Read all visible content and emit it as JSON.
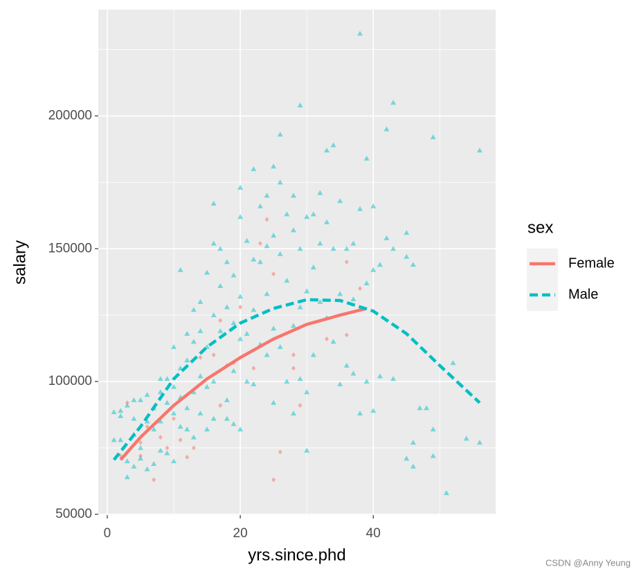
{
  "chart_data": {
    "type": "scatter",
    "x_label": "yrs.since.phd",
    "y_label": "salary",
    "xlim": [
      -1.35,
      58.4
    ],
    "ylim": [
      49700,
      240000
    ],
    "xticks": [
      0,
      20,
      40
    ],
    "yticks": [
      50000,
      100000,
      150000,
      200000
    ],
    "xticks_minor": [
      10,
      30,
      50
    ],
    "yticks_minor": [
      75000,
      125000,
      175000,
      225000
    ],
    "grid": true,
    "legend_title": "sex",
    "legend_position": "right",
    "watermark": "CSDN @Anny Yeung",
    "series": [
      {
        "name": "Female",
        "color": "#F8766D",
        "shape": "diamond",
        "linetype": "solid",
        "x": [
          3,
          4,
          5,
          5,
          7,
          8,
          9,
          11,
          12,
          13,
          16,
          17,
          17,
          18,
          20,
          22,
          23,
          24,
          25,
          25,
          26,
          28,
          28,
          29,
          33,
          36,
          36,
          38,
          19,
          14,
          10,
          6,
          2
        ],
        "y": [
          92000,
          80000,
          77000,
          72000,
          63000,
          79000,
          75000,
          78000,
          71500,
          75000,
          110000,
          123000,
          91000,
          106000,
          128000,
          105000,
          152000,
          161000,
          140500,
          63000,
          73500,
          110000,
          105000,
          91000,
          116000,
          117500,
          145000,
          135000,
          107000,
          109000,
          86000,
          83000,
          72000
        ],
        "fit_x": [
          2,
          5,
          10,
          15,
          20,
          25,
          30,
          35,
          39
        ],
        "fit_y": [
          70500,
          79000,
          91000,
          101000,
          109000,
          116000,
          121500,
          125000,
          127500
        ]
      },
      {
        "name": "Male",
        "color": "#00BFC4",
        "shape": "triangle",
        "linetype": "dashed",
        "x": [
          1,
          1,
          2,
          2,
          2,
          3,
          3,
          3,
          4,
          4,
          4,
          4,
          5,
          5,
          5,
          6,
          6,
          6,
          7,
          7,
          7,
          8,
          8,
          8,
          8,
          9,
          9,
          9,
          10,
          10,
          10,
          10,
          11,
          11,
          11,
          11,
          12,
          12,
          12,
          12,
          13,
          13,
          13,
          13,
          14,
          14,
          14,
          14,
          15,
          15,
          15,
          15,
          16,
          16,
          16,
          16,
          16,
          17,
          17,
          17,
          18,
          18,
          18,
          18,
          19,
          19,
          19,
          19,
          20,
          20,
          20,
          20,
          20,
          21,
          21,
          21,
          22,
          22,
          22,
          22,
          23,
          23,
          23,
          24,
          24,
          24,
          24,
          25,
          25,
          25,
          25,
          26,
          26,
          26,
          26,
          27,
          27,
          27,
          28,
          28,
          28,
          28,
          29,
          29,
          29,
          29,
          30,
          30,
          30,
          30,
          31,
          31,
          31,
          32,
          32,
          32,
          33,
          33,
          33,
          34,
          34,
          34,
          35,
          35,
          35,
          36,
          36,
          37,
          37,
          37,
          38,
          38,
          38,
          39,
          39,
          39,
          40,
          40,
          40,
          41,
          41,
          42,
          42,
          43,
          43,
          43,
          45,
          45,
          45,
          46,
          46,
          46,
          47,
          48,
          49,
          49,
          49,
          51,
          52,
          54,
          56,
          56
        ],
        "y": [
          88500,
          78000,
          89000,
          87000,
          78000,
          91000,
          64000,
          70000,
          93000,
          86000,
          80000,
          68000,
          93000,
          75000,
          71000,
          95000,
          85000,
          67000,
          90000,
          82000,
          69000,
          101000,
          96000,
          85000,
          74000,
          101000,
          92000,
          73000,
          113000,
          98000,
          88000,
          70000,
          105000,
          94000,
          83000,
          142000,
          118000,
          108000,
          90000,
          82000,
          127000,
          115000,
          96000,
          79000,
          130000,
          119000,
          102000,
          88000,
          141000,
          113000,
          98000,
          82000,
          167000,
          152000,
          125000,
          100000,
          86000,
          150000,
          136000,
          119000,
          145000,
          128000,
          93000,
          86000,
          140000,
          122000,
          104000,
          84000,
          173000,
          162000,
          132000,
          116000,
          82000,
          153000,
          118000,
          100000,
          180000,
          146000,
          127000,
          99000,
          166000,
          145000,
          114000,
          170000,
          151000,
          133000,
          110000,
          181000,
          155000,
          120000,
          92000,
          193000,
          175000,
          148000,
          113000,
          163000,
          138000,
          100000,
          170000,
          157000,
          121000,
          88000,
          204000,
          150000,
          128000,
          101000,
          162000,
          134000,
          96000,
          74000,
          163000,
          143000,
          110000,
          171000,
          152000,
          130000,
          187000,
          160000,
          124000,
          189000,
          150000,
          115000,
          168000,
          133000,
          99000,
          150000,
          106000,
          152000,
          131000,
          103000,
          231000,
          165000,
          88000,
          184000,
          137000,
          100000,
          166000,
          142000,
          89000,
          144000,
          102000,
          195000,
          154000,
          205000,
          150000,
          101000,
          156000,
          147000,
          71000,
          144000,
          77000,
          68000,
          90000,
          90000,
          192000,
          82000,
          72000,
          58000,
          107000,
          78500,
          187000,
          77000
        ],
        "fit_x": [
          1,
          5,
          10,
          15,
          20,
          25,
          30,
          35,
          40,
          45,
          50,
          53,
          56
        ],
        "fit_y": [
          70500,
          83000,
          101000,
          113000,
          122000,
          127500,
          130800,
          130500,
          126500,
          118000,
          106000,
          99000,
          92000
        ]
      }
    ]
  }
}
